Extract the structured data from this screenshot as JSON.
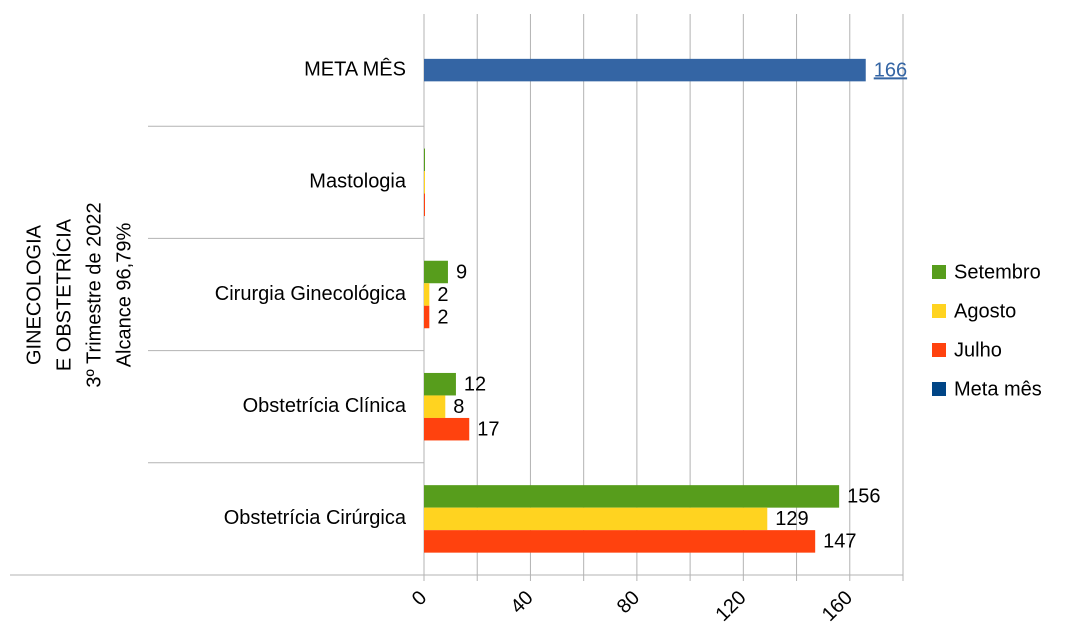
{
  "chart_data": {
    "type": "hbar",
    "y_axis_title": [
      "GINECOLOGIA",
      "E OBSTETRÍCIA",
      "3º Trimestre de 2022",
      "Alcance 96,79%"
    ],
    "categories": [
      "Obstetrícia Cirúrgica",
      "Obstetrícia Clínica",
      "Cirurgia Ginecológica",
      "Mastologia",
      "META MÊS"
    ],
    "series": [
      {
        "name": "Setembro",
        "color": "#579d1c",
        "values": [
          156,
          12,
          9,
          0,
          null
        ],
        "value_labels": [
          "156",
          "12",
          "9",
          null,
          null
        ]
      },
      {
        "name": "Agosto",
        "color": "#ffd320",
        "values": [
          129,
          8,
          2,
          0,
          null
        ],
        "value_labels": [
          "129",
          "8",
          "2",
          null,
          null
        ]
      },
      {
        "name": "Julho",
        "color": "#ff420e",
        "values": [
          147,
          17,
          2,
          0,
          null
        ],
        "value_labels": [
          "147",
          "17",
          "2",
          null,
          null
        ]
      },
      {
        "name": "Meta mês",
        "color": "#004586",
        "bar_color": "#3465a4",
        "values": [
          null,
          null,
          null,
          null,
          166
        ],
        "value_labels": [
          null,
          null,
          null,
          null,
          "166"
        ]
      }
    ],
    "xlim": [
      0,
      180
    ],
    "xticks": [
      0,
      40,
      80,
      120,
      160
    ],
    "xminor_ticks": [
      20,
      60,
      100,
      140,
      180
    ],
    "grid": true,
    "legend": "right"
  }
}
